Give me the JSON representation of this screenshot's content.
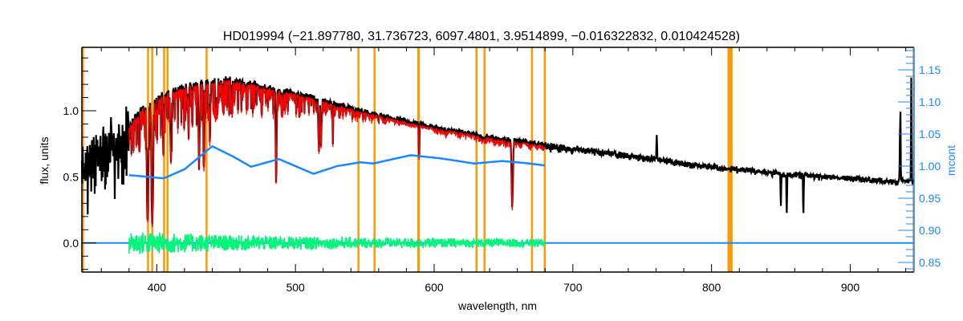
{
  "chart_data": {
    "type": "line",
    "title": "HD019994    (−21.897780, 31.736723, 6097.4801, 3.9514899, −0.016322832, 0.010424528)",
    "xlabel": "wavelength, nm",
    "ylabel": "flux, units",
    "ylabel_right": "mcont",
    "xlim": [
      346,
      946
    ],
    "ylim": [
      -0.22,
      1.48
    ],
    "ylim_right": [
      0.835,
      1.185
    ],
    "x_ticks": [
      400,
      500,
      600,
      700,
      800,
      900
    ],
    "x_tick_labels": [
      "400",
      "500",
      "600",
      "700",
      "800",
      "900"
    ],
    "y_ticks": [
      0.0,
      0.5,
      1.0
    ],
    "y_tick_labels": [
      "0.0",
      "0.5",
      "1.0"
    ],
    "y_right_ticks": [
      0.85,
      0.9,
      0.95,
      1.0,
      1.05,
      1.1,
      1.15
    ],
    "y_right_tick_labels": [
      "0.85",
      "0.90",
      "0.95",
      "1.00",
      "1.05",
      "1.10",
      "1.15"
    ],
    "colors": {
      "observed": "#000000",
      "model": "#ff0000",
      "residuals": "#00f57a",
      "mcont": "#1a88ff",
      "mask": "#ff9900",
      "axis": "#000000"
    },
    "series": [
      {
        "name": "observed flux",
        "range": [
          346,
          946
        ],
        "continuum": [
          [
            346,
            0.62
          ],
          [
            360,
            0.7
          ],
          [
            375,
            0.8
          ],
          [
            385,
            0.98
          ],
          [
            395,
            1.08
          ],
          [
            410,
            1.16
          ],
          [
            430,
            1.22
          ],
          [
            450,
            1.25
          ],
          [
            470,
            1.21
          ],
          [
            500,
            1.14
          ],
          [
            550,
            1.0
          ],
          [
            600,
            0.88
          ],
          [
            650,
            0.79
          ],
          [
            680,
            0.75
          ],
          [
            700,
            0.72
          ],
          [
            750,
            0.65
          ],
          [
            800,
            0.58
          ],
          [
            850,
            0.53
          ],
          [
            900,
            0.49
          ],
          [
            930,
            0.47
          ],
          [
            946,
            0.47
          ]
        ],
        "lines": [
          [
            393.4,
            0.85,
            0.8
          ],
          [
            396.8,
            0.85,
            0.8
          ],
          [
            404.6,
            0.3,
            0.3
          ],
          [
            410.2,
            0.4,
            0.6
          ],
          [
            423.0,
            0.3,
            0.3
          ],
          [
            430.5,
            0.45,
            0.6
          ],
          [
            434.0,
            0.5,
            0.5
          ],
          [
            438.3,
            0.4,
            0.3
          ],
          [
            486.1,
            0.6,
            0.5
          ],
          [
            516.9,
            0.35,
            0.4
          ],
          [
            518.4,
            0.35,
            0.4
          ],
          [
            527.0,
            0.25,
            0.3
          ],
          [
            589.2,
            0.3,
            0.3
          ],
          [
            656.3,
            0.65,
            0.7
          ],
          [
            850.0,
            0.5,
            0.3
          ],
          [
            854.2,
            0.6,
            0.3
          ],
          [
            866.2,
            0.6,
            0.3
          ]
        ],
        "emission": [
          [
            760.5,
            0.25,
            0.3
          ],
          [
            936.0,
            0.85,
            0.4
          ],
          [
            944.0,
            0.8,
            0.3
          ]
        ]
      },
      {
        "name": "model fit",
        "range": [
          380,
          680
        ]
      },
      {
        "name": "residuals",
        "range": [
          380,
          680
        ],
        "amplitude": [
          [
            380,
            0.09
          ],
          [
            450,
            0.06
          ],
          [
            550,
            0.04
          ],
          [
            680,
            0.03
          ]
        ]
      },
      {
        "name": "mcont",
        "axis": "right",
        "points": [
          [
            380,
            0.986
          ],
          [
            405,
            0.981
          ],
          [
            420,
            0.995
          ],
          [
            440,
            1.031
          ],
          [
            455,
            1.015
          ],
          [
            468,
            0.999
          ],
          [
            488,
            1.011
          ],
          [
            500,
            1.0
          ],
          [
            513,
            0.988
          ],
          [
            530,
            1.0
          ],
          [
            547,
            1.006
          ],
          [
            556,
            1.004
          ],
          [
            583,
            1.017
          ],
          [
            605,
            1.012
          ],
          [
            629,
            1.004
          ],
          [
            649,
            1.008
          ],
          [
            665,
            1.005
          ],
          [
            680,
            1.001
          ]
        ]
      }
    ],
    "zero_line": 0.0,
    "masked_regions": [
      [
        346,
        347.5
      ],
      [
        393,
        394
      ],
      [
        396,
        397
      ],
      [
        404.6,
        405.6
      ],
      [
        407,
        408
      ],
      [
        435.2,
        436.2
      ],
      [
        544.7,
        545.7
      ],
      [
        556.3,
        557.3
      ],
      [
        587.8,
        589.6
      ],
      [
        629.8,
        630.8
      ],
      [
        635.6,
        636.6
      ],
      [
        669.8,
        670.8
      ],
      [
        679,
        680
      ],
      [
        811.5,
        815.2
      ],
      [
        945,
        946
      ]
    ]
  }
}
